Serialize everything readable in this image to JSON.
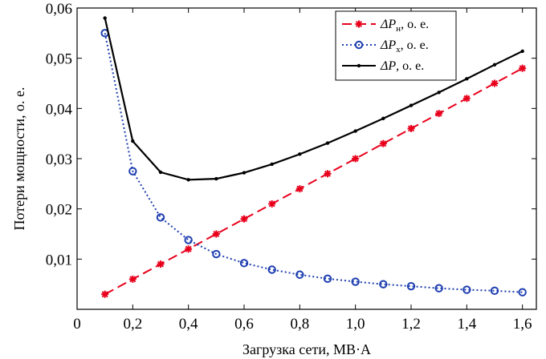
{
  "chart_data": {
    "type": "line",
    "xlabel": "Загрузка сети, МВ·А",
    "ylabel": "Потери мощности, о. е.",
    "xlim": [
      0,
      1.65
    ],
    "ylim": [
      0,
      0.06
    ],
    "x_ticks": [
      "0",
      "0,2",
      "0,4",
      "0,6",
      "0,8",
      "1,0",
      "1,2",
      "1,4",
      "1,6"
    ],
    "y_ticks": [
      "0,01",
      "0,02",
      "0,03",
      "0,04",
      "0,05",
      "0,06"
    ],
    "grid": false,
    "legend_position": "top-right",
    "x": [
      0.1,
      0.2,
      0.3,
      0.4,
      0.5,
      0.6,
      0.7,
      0.8,
      0.9,
      1.0,
      1.1,
      1.2,
      1.3,
      1.4,
      1.5,
      1.6
    ],
    "series": [
      {
        "legend_main": "ΔP",
        "legend_sub": "н",
        "legend_suffix": ", о. е.",
        "color": "#e8001c",
        "marker": "star",
        "dash": "12,6",
        "values": [
          0.003,
          0.006,
          0.009,
          0.012,
          0.015,
          0.018,
          0.021,
          0.024,
          0.027,
          0.03,
          0.033,
          0.036,
          0.039,
          0.042,
          0.045,
          0.048
        ]
      },
      {
        "legend_main": "ΔP",
        "legend_sub": "x",
        "legend_suffix": ", о. е.",
        "color": "#1f3fb0",
        "marker": "circle",
        "dash": "2,3",
        "values": [
          0.055,
          0.0275,
          0.0183,
          0.0138,
          0.011,
          0.0092,
          0.0079,
          0.0069,
          0.0061,
          0.0055,
          0.005,
          0.0046,
          0.0042,
          0.0039,
          0.0037,
          0.0034
        ]
      },
      {
        "legend_main": "ΔP",
        "legend_sub": "",
        "legend_suffix": ", о. е.",
        "color": "#000000",
        "marker": "dot",
        "dash": "",
        "values": [
          0.058,
          0.0335,
          0.0273,
          0.0258,
          0.026,
          0.0272,
          0.0289,
          0.0309,
          0.0331,
          0.0355,
          0.038,
          0.0406,
          0.0432,
          0.0459,
          0.0487,
          0.0514
        ]
      }
    ]
  }
}
